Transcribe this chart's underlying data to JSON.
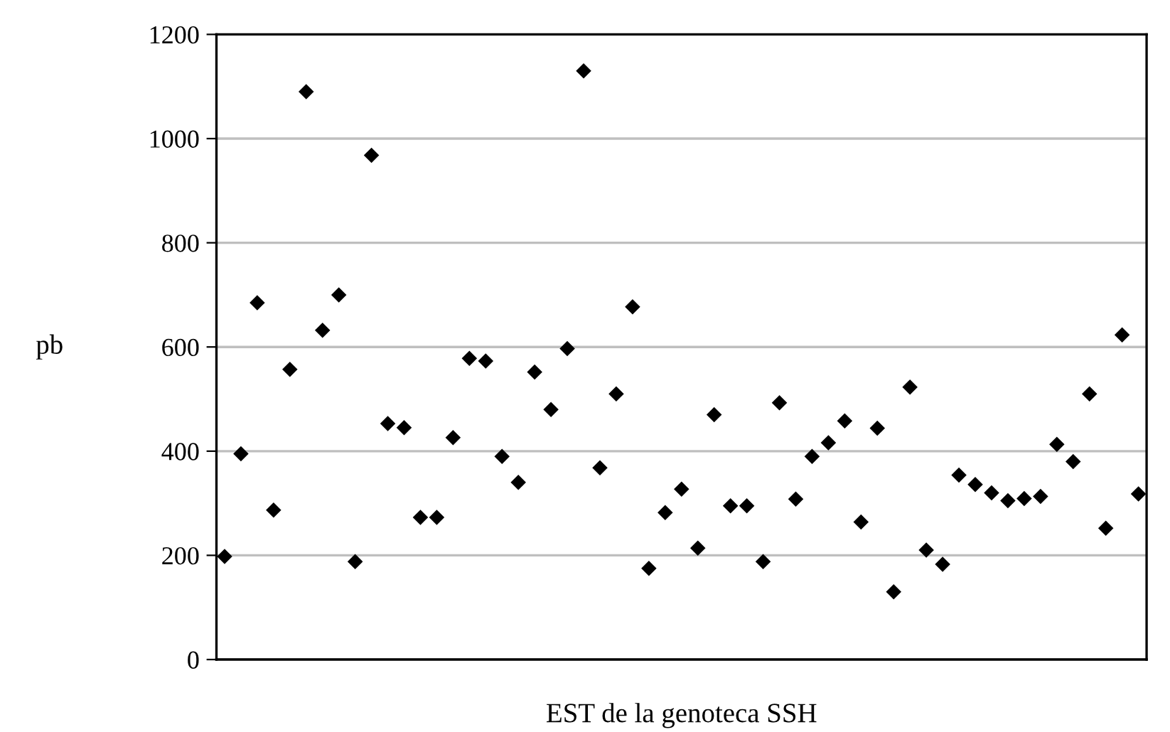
{
  "chart_data": {
    "type": "scatter",
    "xlabel": "EST de la genoteca SSH",
    "ylabel": "pb",
    "categories": [
      null,
      null,
      null,
      null,
      null,
      null,
      null,
      null,
      null,
      null,
      null,
      null,
      null,
      null,
      null,
      null,
      null,
      null,
      null,
      null,
      null,
      null,
      null,
      null,
      null,
      null,
      null,
      null,
      null,
      null,
      null,
      null,
      null,
      null,
      null,
      null,
      null,
      null,
      null,
      null,
      null,
      null,
      null,
      null,
      null,
      null,
      null,
      null,
      null,
      null,
      null,
      null,
      null,
      null,
      null,
      null,
      null
    ],
    "series": [
      {
        "color": "#000000",
        "values": [
          198,
          395,
          685,
          287,
          557,
          1090,
          632,
          700,
          188,
          968,
          453,
          445,
          273,
          273,
          426,
          578,
          573,
          390,
          340,
          552,
          480,
          597,
          1130,
          368,
          510,
          677,
          175,
          282,
          327,
          214,
          470,
          295,
          295,
          188,
          493,
          308,
          390,
          416,
          458,
          264,
          444,
          130,
          523,
          210,
          183,
          354,
          336,
          320,
          305,
          309,
          313,
          413,
          380,
          510,
          252,
          623,
          318
        ]
      }
    ],
    "ylim": [
      0,
      1200
    ],
    "yticks": [
      0,
      200,
      400,
      600,
      800,
      1000,
      1200
    ],
    "grid": "y",
    "marker": "diamond",
    "tick_labels": "y"
  }
}
